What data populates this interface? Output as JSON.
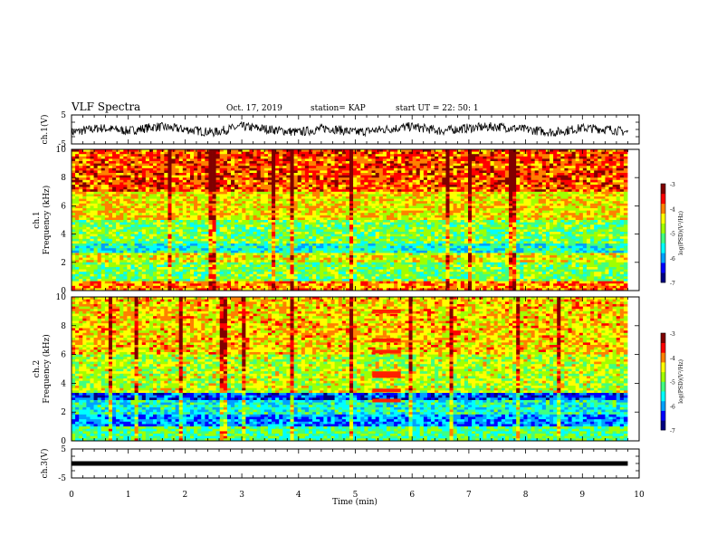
{
  "header": {
    "title": "VLF Spectra",
    "date": "Oct. 17, 2019",
    "station": "station= KAP",
    "start": "start  UT  =   22: 50: 1"
  },
  "colors": {
    "spec_scale": [
      "#000080",
      "#0000ff",
      "#00a0ff",
      "#00ffff",
      "#40ff80",
      "#a0ff00",
      "#ffff00",
      "#ff8000",
      "#ff0000",
      "#800000"
    ],
    "trace": "#000000",
    "axis": "#000000"
  },
  "chart_data": [
    {
      "type": "line",
      "name": "waveform-ch1",
      "ylabel": "ch.1(V)",
      "ylim": [
        -5,
        5
      ],
      "yticks": [
        "5",
        "-5"
      ],
      "x": [
        0,
        0.5,
        1,
        1.5,
        2,
        2.5,
        3,
        3.5,
        4,
        4.5,
        5,
        5.5,
        6,
        6.5,
        7,
        7.5,
        8,
        8.5,
        9,
        9.5,
        9.8
      ],
      "y": [
        -1,
        0.5,
        -0.5,
        1,
        0,
        -1,
        1,
        0,
        -1,
        0.5,
        -1,
        0,
        1,
        -0.5,
        0.5,
        1,
        0,
        -1,
        0.5,
        0,
        -1
      ]
    },
    {
      "type": "heatmap",
      "name": "spectrogram-ch1",
      "ylabel": "ch.1\nFrequency (kHz)",
      "yticks": [
        "0",
        "2",
        "4",
        "6",
        "8",
        "10"
      ],
      "ylim": [
        0,
        10
      ],
      "colorbar": {
        "label": "log(PSD)(V²/Hz)",
        "ticks": [
          "-3",
          "-4",
          "-5",
          "-6",
          "-7"
        ],
        "range": [
          -7,
          -3
        ]
      },
      "band_levels": [
        {
          "freq_khz": [
            0,
            0.6
          ],
          "level": -4
        },
        {
          "freq_khz": [
            0.6,
            2
          ],
          "level": -5
        },
        {
          "freq_khz": [
            2,
            2.6
          ],
          "level": -4.5
        },
        {
          "freq_khz": [
            2.6,
            3.4
          ],
          "level": -5.5
        },
        {
          "freq_khz": [
            3.4,
            5
          ],
          "level": -5
        },
        {
          "freq_khz": [
            5,
            7
          ],
          "level": -4.4
        },
        {
          "freq_khz": [
            7,
            10
          ],
          "level": -3.8
        }
      ]
    },
    {
      "type": "heatmap",
      "name": "spectrogram-ch2",
      "ylabel": "ch.2\nFrequency (kHz)",
      "yticks": [
        "0",
        "2",
        "4",
        "6",
        "8",
        "10"
      ],
      "ylim": [
        0,
        10
      ],
      "colorbar": {
        "label": "log(PSD)(V²/Hz)",
        "ticks": [
          "-3",
          "-4",
          "-5",
          "-6",
          "-7"
        ],
        "range": [
          -7,
          -3
        ]
      },
      "band_levels": [
        {
          "freq_khz": [
            0,
            1.0
          ],
          "level": -5.2
        },
        {
          "freq_khz": [
            1.0,
            1.8
          ],
          "level": -6
        },
        {
          "freq_khz": [
            1.8,
            2.8
          ],
          "level": -5.5
        },
        {
          "freq_khz": [
            2.8,
            3.4
          ],
          "level": -6.3
        },
        {
          "freq_khz": [
            3.4,
            6
          ],
          "level": -4.7
        },
        {
          "freq_khz": [
            6,
            10
          ],
          "level": -4.3
        }
      ],
      "burst": {
        "t_min": [
          5.3,
          5.8
        ],
        "lines_khz": [
          2.8,
          3.5,
          4.5,
          4.7,
          6.2,
          7.0,
          9.0
        ]
      }
    },
    {
      "type": "line",
      "name": "waveform-ch3",
      "ylabel": "ch.3(V)",
      "ylim": [
        -5,
        5
      ],
      "yticks": [
        "5",
        "-5"
      ],
      "x": [
        0,
        9.8
      ],
      "y": [
        0,
        0
      ]
    }
  ],
  "xaxis": {
    "label": "Time (min)",
    "ticks": [
      "0",
      "1",
      "2",
      "3",
      "4",
      "5",
      "6",
      "7",
      "8",
      "9",
      "10"
    ],
    "range": [
      0,
      10
    ]
  }
}
